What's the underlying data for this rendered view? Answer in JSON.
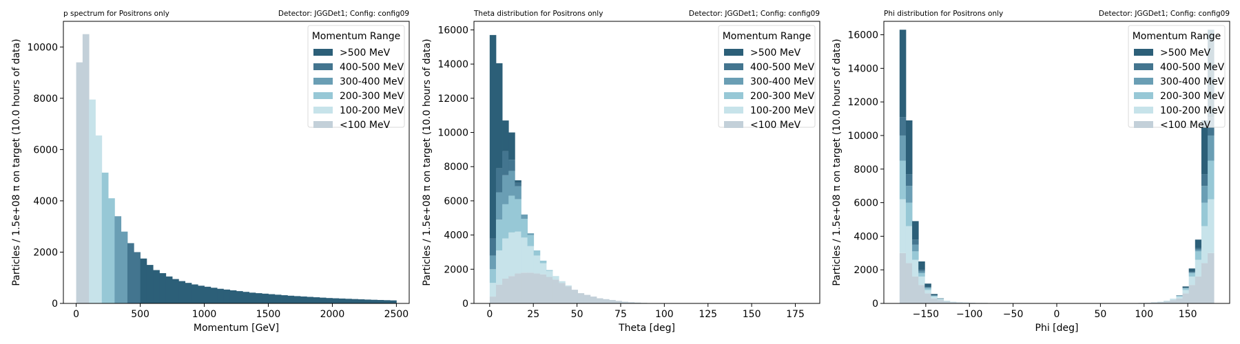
{
  "colors": {
    "gt500": "#2c5f78",
    "c400_500": "#43758f",
    "c300_400": "#6a9eb4",
    "c200_300": "#97c8d6",
    "c100_200": "#c7e3ea",
    "lt100": "#c3d0d9"
  },
  "chart_data": [
    {
      "type": "bar",
      "title": "p spectrum for Positrons only",
      "subtitle": "Detector: JGGDet1; Config: config09",
      "xlabel": "Momentum [GeV]",
      "ylabel": "Particles / 1.5e+08 π on target (10.0 hours of data)",
      "xlim": [
        -100,
        2600
      ],
      "ylim": [
        0,
        11000
      ],
      "xticks": [
        0,
        500,
        1000,
        1500,
        2000,
        2500
      ],
      "yticks": [
        0,
        2000,
        4000,
        6000,
        8000,
        10000
      ],
      "legend": {
        "title": "Momentum Range",
        "position": "top-right",
        "labels": [
          ">500 MeV",
          "400-500 MeV",
          "300-400 MeV",
          "200-300 MeV",
          "100-200 MeV",
          "<100 MeV"
        ]
      },
      "series": [
        {
          "name": "<100 MeV",
          "x": [
            0,
            50
          ],
          "values": [
            9400,
            10500
          ]
        },
        {
          "name": "100-200 MeV",
          "x": [
            100,
            150
          ],
          "values": [
            7950,
            6550
          ]
        },
        {
          "name": "200-300 MeV",
          "x": [
            200,
            250
          ],
          "values": [
            5100,
            4100
          ]
        },
        {
          "name": "300-400 MeV",
          "x": [
            300,
            350
          ],
          "values": [
            3400,
            2800
          ]
        },
        {
          "name": "400-500 MeV",
          "x": [
            400,
            450
          ],
          "values": [
            2350,
            2000
          ]
        },
        {
          "name": ">500 MeV",
          "x": [
            500,
            550,
            600,
            650,
            700,
            750,
            800,
            850,
            900,
            950,
            1000,
            1050,
            1100,
            1150,
            1200,
            1250,
            1300,
            1350,
            1400,
            1450,
            1500,
            1550,
            1600,
            1650,
            1700,
            1750,
            1800,
            1850,
            1900,
            1950,
            2000,
            2050,
            2100,
            2150,
            2200,
            2250,
            2300,
            2350,
            2400,
            2450
          ],
          "values": [
            1750,
            1500,
            1300,
            1180,
            1050,
            950,
            870,
            800,
            740,
            690,
            650,
            610,
            570,
            540,
            510,
            480,
            450,
            420,
            400,
            380,
            360,
            340,
            320,
            300,
            285,
            270,
            255,
            240,
            225,
            210,
            200,
            190,
            180,
            170,
            160,
            150,
            142,
            134,
            126,
            118
          ]
        }
      ]
    },
    {
      "type": "bar",
      "title": "Theta distribution for Positrons only",
      "subtitle": "Detector: JGGDet1; Config: config09",
      "xlabel": "Theta [deg]",
      "ylabel": "Particles / 1.5e+08 π on target (10.0 hours of data)",
      "xlim": [
        -9,
        189
      ],
      "ylim": [
        0,
        16500
      ],
      "xticks": [
        0,
        25,
        50,
        75,
        100,
        125,
        150,
        175
      ],
      "yticks": [
        0,
        2000,
        4000,
        6000,
        8000,
        10000,
        12000,
        14000,
        16000
      ],
      "bin_width": 3.6,
      "legend": {
        "title": "Momentum Range",
        "position": "top-right",
        "labels": [
          ">500 MeV",
          "400-500 MeV",
          "300-400 MeV",
          "200-300 MeV",
          "100-200 MeV",
          "<100 MeV"
        ]
      },
      "x": [
        0,
        3.6,
        7.2,
        10.8,
        14.4,
        18,
        21.6,
        25.2,
        28.8,
        32.4,
        36,
        39.6,
        43.2,
        46.8,
        50.4,
        54,
        57.6,
        61.2,
        64.8,
        68.4,
        72,
        75.6,
        79.2,
        82.8,
        86.4
      ],
      "series": [
        {
          "name": "<100 MeV",
          "values": [
            400,
            1100,
            1450,
            1600,
            1750,
            1800,
            1800,
            1750,
            1700,
            1550,
            1400,
            1200,
            1000,
            800,
            600,
            500,
            400,
            300,
            250,
            200,
            150,
            100,
            70,
            50,
            30
          ]
        },
        {
          "name": "100-200 MeV",
          "values": [
            800,
            2000,
            2350,
            2550,
            2450,
            2050,
            1550,
            1050,
            650,
            350,
            200,
            100,
            50,
            0,
            0,
            0,
            0,
            0,
            0,
            0,
            0,
            0,
            0,
            0,
            0
          ]
        },
        {
          "name": "200-300 MeV",
          "values": [
            800,
            1800,
            2000,
            2150,
            1900,
            1100,
            650,
            300,
            150,
            50,
            0,
            0,
            0,
            0,
            0,
            0,
            0,
            0,
            0,
            0,
            0,
            0,
            0,
            0,
            0
          ]
        },
        {
          "name": "300-400 MeV",
          "values": [
            800,
            1600,
            1700,
            1450,
            750,
            250,
            100,
            0,
            0,
            0,
            0,
            0,
            0,
            0,
            0,
            0,
            0,
            0,
            0,
            0,
            0,
            0,
            0,
            0,
            0
          ]
        },
        {
          "name": "400-500 MeV",
          "values": [
            1000,
            1400,
            1400,
            650,
            200,
            0,
            0,
            0,
            0,
            0,
            0,
            0,
            0,
            0,
            0,
            0,
            0,
            0,
            0,
            0,
            0,
            0,
            0,
            0,
            0
          ]
        },
        {
          "name": ">500 MeV",
          "values": [
            11900,
            6150,
            1800,
            1600,
            150,
            0,
            0,
            0,
            0,
            0,
            0,
            0,
            0,
            0,
            0,
            0,
            0,
            0,
            0,
            0,
            0,
            0,
            0,
            0,
            0
          ]
        }
      ]
    },
    {
      "type": "bar",
      "title": "Phi distribution for Positrons only",
      "subtitle": "Detector: JGGDet1; Config: config09",
      "xlabel": "Phi [deg]",
      "ylabel": "Particles / 1.5e+08 π on target (10.0 hours of data)",
      "xlim": [
        -198,
        198
      ],
      "ylim": [
        0,
        16800
      ],
      "xticks": [
        -150,
        -100,
        -50,
        0,
        50,
        100,
        150
      ],
      "yticks": [
        0,
        2000,
        4000,
        6000,
        8000,
        10000,
        12000,
        14000,
        16000
      ],
      "bin_width": 7.2,
      "legend": {
        "title": "Momentum Range",
        "position": "top-right",
        "labels": [
          ">500 MeV",
          "400-500 MeV",
          "300-400 MeV",
          "200-300 MeV",
          "100-200 MeV",
          "<100 MeV"
        ]
      },
      "x": [
        -180,
        -172.8,
        -165.6,
        -158.4,
        -151.2,
        -144,
        -136.8,
        -129.6,
        -122.4,
        -115.2,
        -108,
        -100.8,
        -93.6,
        -86.4,
        -50.4,
        -36,
        -21.6,
        -7.2,
        7.2,
        21.6,
        93.6,
        100.8,
        108,
        115.2,
        122.4,
        129.6,
        136.8,
        144,
        151.2,
        158.4,
        165.6,
        172.8
      ],
      "series": [
        {
          "name": "<100 MeV",
          "values": [
            3000,
            2400,
            1600,
            1100,
            600,
            300,
            200,
            120,
            80,
            60,
            50,
            40,
            30,
            30,
            20,
            20,
            20,
            20,
            20,
            20,
            30,
            40,
            60,
            80,
            120,
            200,
            300,
            600,
            1100,
            1600,
            2400,
            3000
          ]
        },
        {
          "name": "100-200 MeV",
          "values": [
            3200,
            2200,
            1000,
            500,
            200,
            100,
            50,
            30,
            20,
            10,
            10,
            0,
            0,
            0,
            0,
            0,
            0,
            0,
            0,
            0,
            0,
            0,
            10,
            20,
            30,
            50,
            100,
            200,
            500,
            1000,
            2200,
            3200
          ]
        },
        {
          "name": "200-300 MeV",
          "values": [
            2300,
            1400,
            500,
            200,
            100,
            50,
            20,
            10,
            0,
            0,
            0,
            0,
            0,
            0,
            0,
            0,
            0,
            0,
            0,
            0,
            0,
            0,
            0,
            0,
            10,
            20,
            50,
            100,
            200,
            500,
            1400,
            2300
          ]
        },
        {
          "name": "300-400 MeV",
          "values": [
            1500,
            1000,
            400,
            100,
            50,
            20,
            10,
            0,
            0,
            0,
            0,
            0,
            0,
            0,
            0,
            0,
            0,
            0,
            0,
            0,
            0,
            0,
            0,
            0,
            0,
            0,
            10,
            20,
            50,
            100,
            1000,
            1500
          ]
        },
        {
          "name": "400-500 MeV",
          "values": [
            1100,
            700,
            300,
            100,
            30,
            10,
            0,
            0,
            0,
            0,
            0,
            0,
            0,
            0,
            0,
            0,
            0,
            0,
            0,
            0,
            0,
            0,
            0,
            0,
            0,
            0,
            0,
            10,
            30,
            100,
            700,
            1100
          ]
        },
        {
          "name": ">500 MeV",
          "values": [
            5200,
            3200,
            1100,
            500,
            200,
            80,
            20,
            0,
            0,
            0,
            0,
            0,
            0,
            0,
            0,
            0,
            0,
            0,
            0,
            0,
            0,
            0,
            0,
            0,
            0,
            0,
            20,
            80,
            200,
            500,
            3200,
            5200
          ]
        }
      ]
    }
  ]
}
